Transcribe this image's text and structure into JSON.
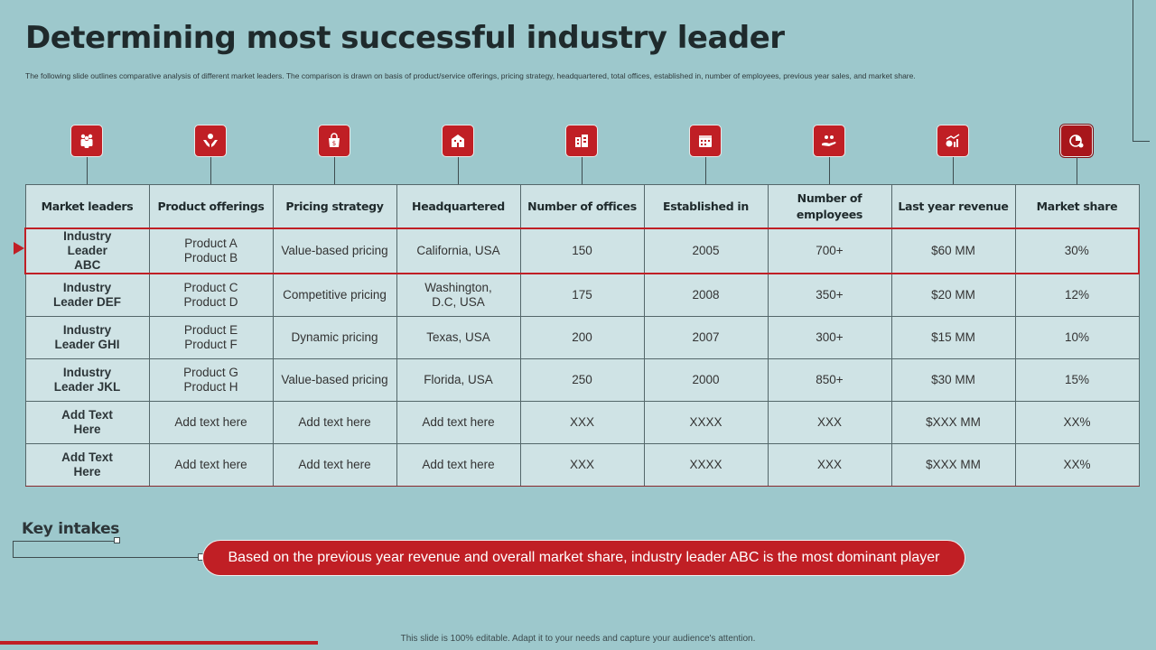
{
  "slide": {
    "title": "Determining most successful industry leader",
    "subtitle": "The  following slide outlines comparative analysis of different market leaders. The comparison is drawn  on basis of product/service offerings, pricing strategy, headquartered, total offices, established in, number of employees, previous year sales, and market share.",
    "footer": "This slide is 100% editable.  Adapt it to your needs and capture your audience's attention."
  },
  "icons": [
    {
      "name": "people-group-icon"
    },
    {
      "name": "hands-offering-icon"
    },
    {
      "name": "price-tag-bag-icon"
    },
    {
      "name": "building-icon"
    },
    {
      "name": "office-buildings-icon"
    },
    {
      "name": "calendar-icon"
    },
    {
      "name": "employees-hand-icon"
    },
    {
      "name": "revenue-chart-icon"
    },
    {
      "name": "market-share-pie-icon"
    }
  ],
  "table": {
    "headers": [
      "Market leaders",
      "Product offerings",
      "Pricing strategy",
      "Headquartered",
      "Number of offices",
      "Established in",
      "Number of employees",
      "Last year revenue",
      "Market share"
    ],
    "rows": [
      {
        "leader": "Industry Leader ABC",
        "products": "Product A Product B",
        "pricing": "Value-based  pricing",
        "hq": "California,  USA",
        "offices": "150",
        "established": "2005",
        "employees": "700+",
        "revenue": "$60 MM",
        "share": "30%"
      },
      {
        "leader": "Industry Leader DEF",
        "products": "Product C Product D",
        "pricing": "Competitive  pricing",
        "hq": "Washington, D.C, USA",
        "offices": "175",
        "established": "2008",
        "employees": "350+",
        "revenue": "$20 MM",
        "share": "12%"
      },
      {
        "leader": "Industry Leader GHI",
        "products": "Product E Product F",
        "pricing": "Dynamic pricing",
        "hq": "Texas, USA",
        "offices": "200",
        "established": "2007",
        "employees": "300+",
        "revenue": "$15 MM",
        "share": "10%"
      },
      {
        "leader": "Industry Leader JKL",
        "products": "Product G Product H",
        "pricing": "Value-based  pricing",
        "hq": "Florida,  USA",
        "offices": "250",
        "established": "2000",
        "employees": "850+",
        "revenue": "$30 MM",
        "share": "15%"
      },
      {
        "leader": "Add Text Here",
        "products": "Add text here",
        "pricing": "Add text here",
        "hq": "Add text here",
        "offices": "XXX",
        "established": "XXXX",
        "employees": "XXX",
        "revenue": "$XXX  MM",
        "share": "XX%"
      },
      {
        "leader": "Add Text Here",
        "products": "Add text here",
        "pricing": "Add text here",
        "hq": "Add text here",
        "offices": "XXX",
        "established": "XXXX",
        "employees": "XXX",
        "revenue": "$XXX  MM",
        "share": "XX%"
      }
    ]
  },
  "key_intakes": {
    "title": "Key intakes",
    "text": "Based on the previous year revenue and overall market share, industry leader ABC is the most dominant player"
  },
  "colors": {
    "background": "#9dc8cc",
    "accent": "#c01f25",
    "table_fill": "#cfe3e5"
  }
}
